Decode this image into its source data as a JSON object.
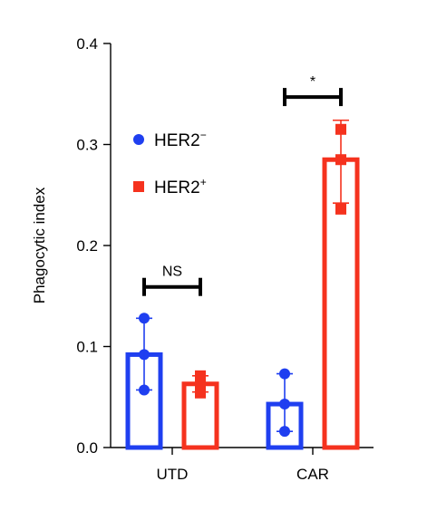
{
  "chart_data": {
    "type": "bar",
    "title": "",
    "xlabel": "",
    "ylabel": "Phagocytic index",
    "ylim": [
      0,
      0.4
    ],
    "yticks": [
      "0.0",
      "0.1",
      "0.2",
      "0.3",
      "0.4"
    ],
    "yticks_values": [
      0,
      0.1,
      0.2,
      0.3,
      0.4
    ],
    "categories": [
      "UTD",
      "CAR"
    ],
    "series": [
      {
        "name": "HER2−",
        "label_base": "HER2",
        "label_sup": "−",
        "color": "#1f3ff0",
        "marker": "circle",
        "values": [
          0.092,
          0.043
        ],
        "error": [
          [
            0.057,
            0.128
          ],
          [
            0.016,
            0.073
          ]
        ],
        "points": [
          [
            0.057,
            0.092,
            0.128
          ],
          [
            0.016,
            0.043,
            0.073
          ]
        ]
      },
      {
        "name": "HER2+",
        "label_base": "HER2",
        "label_sup": "+",
        "color": "#f5321e",
        "marker": "square",
        "values": [
          0.063,
          0.285
        ],
        "error": [
          [
            0.055,
            0.071
          ],
          [
            0.242,
            0.324
          ]
        ],
        "points": [
          [
            0.054,
            0.064,
            0.071
          ],
          [
            0.236,
            0.285,
            0.315
          ]
        ]
      }
    ],
    "significance": [
      {
        "group": "UTD",
        "label": "NS",
        "y": 0.159
      },
      {
        "group": "CAR",
        "label": "*",
        "y": 0.347
      }
    ],
    "legend_position": "upper-left",
    "grid": false
  }
}
